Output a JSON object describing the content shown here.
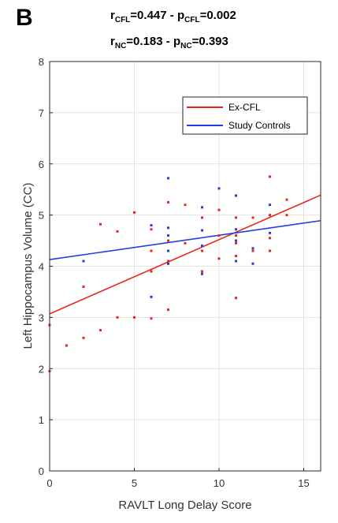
{
  "panel_letter": "B",
  "stats": {
    "line1": {
      "r_sym": "r",
      "r_sub": "CFL",
      "r_val": "=0.447 - ",
      "p_sym": "p",
      "p_sub": "CFL",
      "p_val": "=0.002"
    },
    "line2": {
      "r_sym": "r",
      "r_sub": "NC",
      "r_val": "=0.183 - ",
      "p_sym": "p",
      "p_sub": "NC",
      "p_val": "=0.393"
    }
  },
  "colors": {
    "cfl": "#e8261e",
    "nc": "#1f3fe0",
    "axis": "#262626",
    "grid": "#e3e3e3"
  },
  "chart_data": {
    "type": "scatter",
    "xlabel": "RAVLT Long Delay Score",
    "ylabel": "Left Hippocampus Volume (CC)",
    "xlim": [
      0,
      16
    ],
    "ylim": [
      0,
      8
    ],
    "xticks": [
      0,
      5,
      10,
      15
    ],
    "yticks": [
      0,
      1,
      2,
      3,
      4,
      5,
      6,
      7,
      8
    ],
    "grid": true,
    "legend_position": "top-right",
    "series": [
      {
        "name": "Ex-CFL",
        "color": "#e8261e",
        "points": [
          [
            0,
            2.85
          ],
          [
            0,
            1.95
          ],
          [
            1,
            2.45
          ],
          [
            2,
            2.6
          ],
          [
            2,
            3.6
          ],
          [
            3,
            2.75
          ],
          [
            3,
            4.82
          ],
          [
            4,
            3.0
          ],
          [
            4,
            4.68
          ],
          [
            5,
            3.0
          ],
          [
            5,
            5.05
          ],
          [
            6,
            2.98
          ],
          [
            6,
            3.9
          ],
          [
            6,
            4.3
          ],
          [
            6,
            4.72
          ],
          [
            7,
            3.15
          ],
          [
            7,
            4.1
          ],
          [
            7,
            4.5
          ],
          [
            7,
            5.25
          ],
          [
            8,
            4.45
          ],
          [
            8,
            5.2
          ],
          [
            9,
            3.9
          ],
          [
            9,
            4.3
          ],
          [
            9,
            4.95
          ],
          [
            10,
            4.15
          ],
          [
            10,
            4.6
          ],
          [
            10,
            5.1
          ],
          [
            11,
            3.38
          ],
          [
            11,
            4.2
          ],
          [
            11,
            4.45
          ],
          [
            11,
            4.6
          ],
          [
            11,
            4.95
          ],
          [
            12,
            4.3
          ],
          [
            12,
            4.95
          ],
          [
            13,
            4.3
          ],
          [
            13,
            4.55
          ],
          [
            13,
            5.0
          ],
          [
            13,
            5.75
          ],
          [
            14,
            5.0
          ],
          [
            14,
            5.3
          ]
        ],
        "fit": {
          "intercept": 3.07,
          "slope": 0.145
        }
      },
      {
        "name": "Study Controls",
        "color": "#1f3fe0",
        "points": [
          [
            2,
            4.1
          ],
          [
            6,
            3.4
          ],
          [
            6,
            4.8
          ],
          [
            7,
            4.05
          ],
          [
            7,
            4.3
          ],
          [
            7,
            4.6
          ],
          [
            7,
            4.75
          ],
          [
            7,
            5.72
          ],
          [
            9,
            3.85
          ],
          [
            9,
            4.4
          ],
          [
            9,
            4.7
          ],
          [
            9,
            5.15
          ],
          [
            10,
            5.52
          ],
          [
            11,
            4.1
          ],
          [
            11,
            4.5
          ],
          [
            11,
            4.72
          ],
          [
            11,
            5.38
          ],
          [
            12,
            4.05
          ],
          [
            12,
            4.35
          ],
          [
            13,
            4.65
          ],
          [
            13,
            5.2
          ]
        ],
        "fit": {
          "intercept": 4.13,
          "slope": 0.0475
        }
      }
    ]
  }
}
